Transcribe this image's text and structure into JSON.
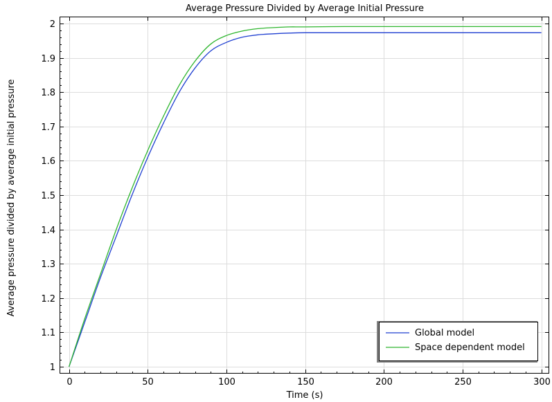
{
  "chart_data": {
    "type": "line",
    "title": "Average Pressure Divided by Average Initial Pressure",
    "xlabel": "Time (s)",
    "ylabel": "Average pressure divided by average initial pressure",
    "xlim": [
      -6,
      305
    ],
    "ylim": [
      0.98,
      2.02
    ],
    "xticks": [
      0,
      50,
      100,
      150,
      200,
      250,
      300
    ],
    "yticks": [
      1,
      1.1,
      1.2,
      1.3,
      1.4,
      1.5,
      1.6,
      1.7,
      1.8,
      1.9,
      2
    ],
    "ytick_labels": [
      "1",
      "1.1",
      "1.2",
      "1.3",
      "1.4",
      "1.5",
      "1.6",
      "1.7",
      "1.8",
      "1.9",
      "2"
    ],
    "grid": true,
    "legend": "bottom-right",
    "series": [
      {
        "name": "Global model",
        "color": "#1f3fd1",
        "x": [
          0,
          10,
          20,
          30,
          40,
          50,
          60,
          70,
          80,
          90,
          100,
          110,
          120,
          130,
          140,
          150,
          175,
          200,
          250,
          300
        ],
        "y": [
          1.0,
          1.13,
          1.26,
          1.38,
          1.5,
          1.61,
          1.71,
          1.8,
          1.87,
          1.92,
          1.945,
          1.96,
          1.967,
          1.97,
          1.972,
          1.973,
          1.973,
          1.973,
          1.973,
          1.973
        ]
      },
      {
        "name": "Space dependent model",
        "color": "#2db52d",
        "x": [
          0,
          10,
          20,
          30,
          40,
          50,
          60,
          70,
          80,
          90,
          100,
          110,
          120,
          130,
          140,
          150,
          175,
          200,
          250,
          300
        ],
        "y": [
          1.0,
          1.14,
          1.27,
          1.4,
          1.52,
          1.63,
          1.73,
          1.82,
          1.89,
          1.94,
          1.965,
          1.978,
          1.985,
          1.988,
          1.99,
          1.99,
          1.991,
          1.991,
          1.991,
          1.991
        ]
      }
    ]
  }
}
